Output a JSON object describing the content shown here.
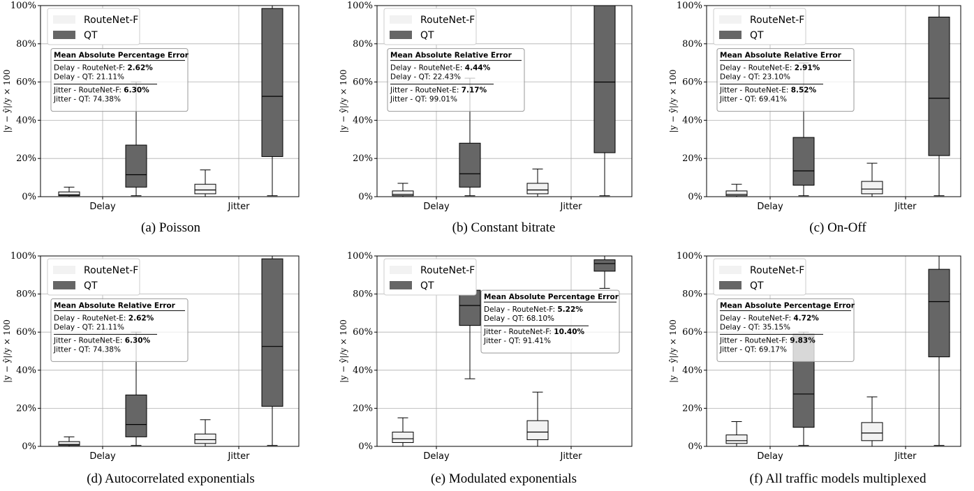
{
  "figure": {
    "ylabel": "|y − ŷ|/y × 100",
    "legend": [
      {
        "name": "RouteNet-F",
        "color": "#f2f2f2"
      },
      {
        "name": "QT",
        "color": "#666666"
      }
    ],
    "colors": {
      "routenet": "#f2f2f2",
      "qt": "#666666",
      "grid": "#b0b0b0"
    }
  },
  "chart_data": [
    {
      "type": "box",
      "caption": "(a) Poisson",
      "categories": [
        "Delay",
        "Jitter"
      ],
      "ylim": [
        0,
        100
      ],
      "yticks": [
        "0%",
        "20%",
        "40%",
        "60%",
        "80%",
        "100%"
      ],
      "grid": true,
      "legend_position": "top-left",
      "series": [
        {
          "name": "RouteNet-F",
          "boxes": [
            {
              "whislo": 0,
              "q1": 0.5,
              "med": 1.0,
              "q3": 2.5,
              "whishi": 5
            },
            {
              "whislo": 0,
              "q1": 1.5,
              "med": 3.5,
              "q3": 6.5,
              "whishi": 14
            }
          ]
        },
        {
          "name": "QT",
          "boxes": [
            {
              "whislo": 0.5,
              "q1": 5,
              "med": 11.5,
              "q3": 27,
              "whishi": 60
            },
            {
              "whislo": 0.5,
              "q1": 21,
              "med": 52.5,
              "q3": 98.5,
              "whishi": 100
            }
          ]
        }
      ],
      "info": {
        "title": "Mean Absolute Percentage Error",
        "lines": [
          {
            "label": "Delay - RouteNet-F: ",
            "value": "2.62%",
            "bold": true
          },
          {
            "label": "Delay - QT: ",
            "value": "21.11%",
            "bold": false
          },
          {
            "label": "Jitter - RouteNet-F: ",
            "value": "6.30%",
            "bold": true
          },
          {
            "label": "Jitter - QT: ",
            "value": "74.38%",
            "bold": false
          }
        ]
      }
    },
    {
      "type": "box",
      "caption": "(b) Constant bitrate",
      "categories": [
        "Delay",
        "Jitter"
      ],
      "ylim": [
        0,
        100
      ],
      "yticks": [
        "0%",
        "20%",
        "40%",
        "60%",
        "80%",
        "100%"
      ],
      "grid": true,
      "legend_position": "top-left",
      "series": [
        {
          "name": "RouteNet-F",
          "boxes": [
            {
              "whislo": 0,
              "q1": 0.5,
              "med": 1.2,
              "q3": 3,
              "whishi": 7
            },
            {
              "whislo": 0,
              "q1": 1.5,
              "med": 3.5,
              "q3": 7,
              "whishi": 14.5
            }
          ]
        },
        {
          "name": "QT",
          "boxes": [
            {
              "whislo": 0.5,
              "q1": 5,
              "med": 12,
              "q3": 28,
              "whishi": 62
            },
            {
              "whislo": 0.5,
              "q1": 23,
              "med": 60,
              "q3": 100,
              "whishi": 100
            }
          ]
        }
      ],
      "info": {
        "title": "Mean Absolute Relative Error",
        "lines": [
          {
            "label": "Delay - RouteNet-E: ",
            "value": "4.44%",
            "bold": true
          },
          {
            "label": "Delay - QT: ",
            "value": "22.43%",
            "bold": false
          },
          {
            "label": "Jitter - RouteNet-E: ",
            "value": "7.17%",
            "bold": true
          },
          {
            "label": "Jitter - QT: ",
            "value": "99.01%",
            "bold": false
          }
        ]
      }
    },
    {
      "type": "box",
      "caption": "(c) On-Off",
      "categories": [
        "Delay",
        "Jitter"
      ],
      "ylim": [
        0,
        100
      ],
      "yticks": [
        "0%",
        "20%",
        "40%",
        "60%",
        "80%",
        "100%"
      ],
      "grid": true,
      "legend_position": "top-left",
      "series": [
        {
          "name": "RouteNet-F",
          "boxes": [
            {
              "whislo": 0,
              "q1": 0.5,
              "med": 1.2,
              "q3": 3,
              "whishi": 6.5
            },
            {
              "whislo": 0,
              "q1": 1.5,
              "med": 4,
              "q3": 8,
              "whishi": 17.5
            }
          ]
        },
        {
          "name": "QT",
          "boxes": [
            {
              "whislo": 0.5,
              "q1": 6,
              "med": 13.5,
              "q3": 31,
              "whishi": 70
            },
            {
              "whislo": 0.5,
              "q1": 21.5,
              "med": 51.5,
              "q3": 94,
              "whishi": 100
            }
          ]
        }
      ],
      "info": {
        "title": "Mean Absolute Relative Error",
        "lines": [
          {
            "label": "Delay - RouteNet-E: ",
            "value": "2.91%",
            "bold": true
          },
          {
            "label": "Delay - QT: ",
            "value": "23.10%",
            "bold": false
          },
          {
            "label": "Jitter - RouteNet-E: ",
            "value": "8.52%",
            "bold": true
          },
          {
            "label": "Jitter - QT: ",
            "value": "69.41%",
            "bold": false
          }
        ]
      }
    },
    {
      "type": "box",
      "caption": "(d) Autocorrelated exponentials",
      "categories": [
        "Delay",
        "Jitter"
      ],
      "ylim": [
        0,
        100
      ],
      "yticks": [
        "0%",
        "20%",
        "40%",
        "60%",
        "80%",
        "100%"
      ],
      "grid": true,
      "legend_position": "top-left",
      "series": [
        {
          "name": "RouteNet-F",
          "boxes": [
            {
              "whislo": 0,
              "q1": 0.5,
              "med": 1.0,
              "q3": 2.5,
              "whishi": 5
            },
            {
              "whislo": 0,
              "q1": 1.5,
              "med": 3.5,
              "q3": 6.5,
              "whishi": 14
            }
          ]
        },
        {
          "name": "QT",
          "boxes": [
            {
              "whislo": 0.5,
              "q1": 5,
              "med": 11.5,
              "q3": 27,
              "whishi": 60
            },
            {
              "whislo": 0.5,
              "q1": 21,
              "med": 52.5,
              "q3": 98.5,
              "whishi": 100
            }
          ]
        }
      ],
      "info": {
        "title": "Mean Absolute Relative Error",
        "lines": [
          {
            "label": "Delay - RouteNet-E: ",
            "value": "2.62%",
            "bold": true
          },
          {
            "label": "Delay - QT: ",
            "value": "21.11%",
            "bold": false
          },
          {
            "label": "Jitter - RouteNet-E: ",
            "value": "6.30%",
            "bold": true
          },
          {
            "label": "Jitter - QT: ",
            "value": "74.38%",
            "bold": false
          }
        ]
      }
    },
    {
      "type": "box",
      "caption": "(e) Modulated exponentials",
      "categories": [
        "Delay",
        "Jitter"
      ],
      "ylim": [
        0,
        100
      ],
      "yticks": [
        "0%",
        "20%",
        "40%",
        "60%",
        "80%",
        "100%"
      ],
      "grid": true,
      "legend_position": "top-left",
      "series": [
        {
          "name": "RouteNet-F",
          "boxes": [
            {
              "whislo": 0,
              "q1": 2,
              "med": 4,
              "q3": 7.5,
              "whishi": 15
            },
            {
              "whislo": 0,
              "q1": 3.5,
              "med": 7.5,
              "q3": 13.5,
              "whishi": 28.5
            }
          ]
        },
        {
          "name": "QT",
          "boxes": [
            {
              "whislo": 35.5,
              "q1": 63.5,
              "med": 74,
              "q3": 82,
              "whishi": 96.5
            },
            {
              "whislo": 83,
              "q1": 92,
              "med": 96,
              "q3": 98,
              "whishi": 100
            }
          ]
        }
      ],
      "info": {
        "title": "Mean Absolute Percentage Error",
        "lines": [
          {
            "label": "Delay - RouteNet-F: ",
            "value": "5.22%",
            "bold": true
          },
          {
            "label": "Delay - QT: ",
            "value": "68.10%",
            "bold": false
          },
          {
            "label": "Jitter - RouteNet-F: ",
            "value": "10.40%",
            "bold": true
          },
          {
            "label": "Jitter - QT: ",
            "value": "91.41%",
            "bold": false
          }
        ]
      }
    },
    {
      "type": "box",
      "caption": "(f) All traffic models multiplexed",
      "categories": [
        "Delay",
        "Jitter"
      ],
      "ylim": [
        0,
        100
      ],
      "yticks": [
        "0%",
        "20%",
        "40%",
        "60%",
        "80%",
        "100%"
      ],
      "grid": true,
      "legend_position": "top-left",
      "series": [
        {
          "name": "RouteNet-F",
          "boxes": [
            {
              "whislo": 0,
              "q1": 1.5,
              "med": 3,
              "q3": 6,
              "whishi": 13
            },
            {
              "whislo": 0,
              "q1": 3,
              "med": 7,
              "q3": 12.5,
              "whishi": 26
            }
          ]
        },
        {
          "name": "QT",
          "boxes": [
            {
              "whislo": 0.5,
              "q1": 10,
              "med": 27.5,
              "q3": 59,
              "whishi": 60
            },
            {
              "whislo": 0.5,
              "q1": 47,
              "med": 76,
              "q3": 93,
              "whishi": 100
            }
          ]
        }
      ],
      "info": {
        "title": "Mean Absolute Percentage Error",
        "lines": [
          {
            "label": "Delay - RouteNet-F: ",
            "value": "4.72%",
            "bold": true
          },
          {
            "label": "Delay - QT: ",
            "value": "35.15%",
            "bold": false
          },
          {
            "label": "Jitter - RouteNet-F: ",
            "value": "9.83%",
            "bold": true
          },
          {
            "label": "Jitter - QT: ",
            "value": "69.17%",
            "bold": false
          }
        ]
      }
    }
  ]
}
